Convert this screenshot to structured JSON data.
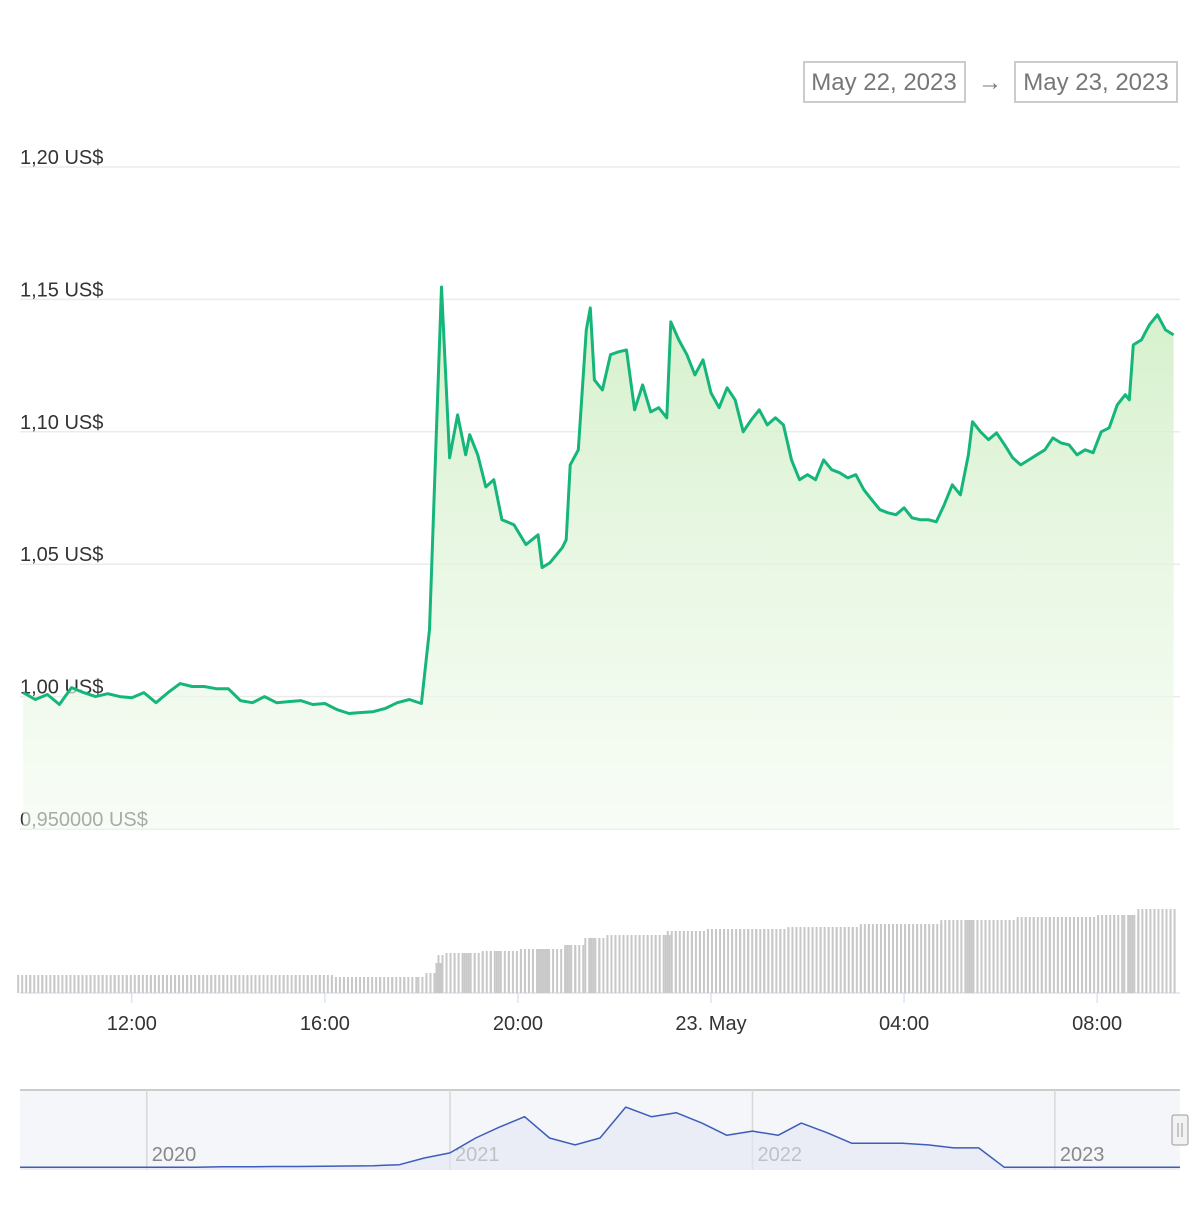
{
  "range_selector": {
    "from": "May 22, 2023",
    "separator": "→",
    "to": "May 23, 2023"
  },
  "chart_data": [
    {
      "type": "line",
      "color": "#16b67a",
      "grid": true,
      "x": [
        "2023-05-22T09:45",
        "2023-05-22T10:00",
        "2023-05-22T10:15",
        "2023-05-22T10:30",
        "2023-05-22T10:45",
        "2023-05-22T11:00",
        "2023-05-22T11:15",
        "2023-05-22T11:30",
        "2023-05-22T11:45",
        "2023-05-22T12:00",
        "2023-05-22T12:15",
        "2023-05-22T12:30",
        "2023-05-22T12:45",
        "2023-05-22T13:00",
        "2023-05-22T13:15",
        "2023-05-22T13:30",
        "2023-05-22T13:45",
        "2023-05-22T14:00",
        "2023-05-22T14:15",
        "2023-05-22T14:30",
        "2023-05-22T14:45",
        "2023-05-22T15:00",
        "2023-05-22T15:15",
        "2023-05-22T15:30",
        "2023-05-22T15:45",
        "2023-05-22T16:00",
        "2023-05-22T16:15",
        "2023-05-22T16:30",
        "2023-05-22T16:45",
        "2023-05-22T17:00",
        "2023-05-22T17:15",
        "2023-05-22T17:30",
        "2023-05-22T17:45",
        "2023-05-22T18:00",
        "2023-05-22T18:10",
        "2023-05-22T18:20",
        "2023-05-22T18:25",
        "2023-05-22T18:35",
        "2023-05-22T18:45",
        "2023-05-22T18:55",
        "2023-05-22T19:00",
        "2023-05-22T19:10",
        "2023-05-22T19:20",
        "2023-05-22T19:30",
        "2023-05-22T19:40",
        "2023-05-22T19:55",
        "2023-05-22T20:10",
        "2023-05-22T20:25",
        "2023-05-22T20:30",
        "2023-05-22T20:40",
        "2023-05-22T20:55",
        "2023-05-22T21:00",
        "2023-05-22T21:05",
        "2023-05-22T21:15",
        "2023-05-22T21:25",
        "2023-05-22T21:30",
        "2023-05-22T21:35",
        "2023-05-22T21:45",
        "2023-05-22T21:55",
        "2023-05-22T22:05",
        "2023-05-22T22:15",
        "2023-05-22T22:25",
        "2023-05-22T22:35",
        "2023-05-22T22:45",
        "2023-05-22T22:55",
        "2023-05-22T23:05",
        "2023-05-22T23:10",
        "2023-05-22T23:20",
        "2023-05-22T23:30",
        "2023-05-22T23:40",
        "2023-05-22T23:50",
        "2023-05-23T00:00",
        "2023-05-23T00:10",
        "2023-05-23T00:20",
        "2023-05-23T00:30",
        "2023-05-23T00:40",
        "2023-05-23T00:50",
        "2023-05-23T01:00",
        "2023-05-23T01:10",
        "2023-05-23T01:20",
        "2023-05-23T01:30",
        "2023-05-23T01:40",
        "2023-05-23T01:50",
        "2023-05-23T02:00",
        "2023-05-23T02:10",
        "2023-05-23T02:20",
        "2023-05-23T02:30",
        "2023-05-23T02:40",
        "2023-05-23T02:50",
        "2023-05-23T03:00",
        "2023-05-23T03:10",
        "2023-05-23T03:20",
        "2023-05-23T03:30",
        "2023-05-23T03:40",
        "2023-05-23T03:50",
        "2023-05-23T04:00",
        "2023-05-23T04:10",
        "2023-05-23T04:20",
        "2023-05-23T04:30",
        "2023-05-23T04:40",
        "2023-05-23T04:50",
        "2023-05-23T05:00",
        "2023-05-23T05:10",
        "2023-05-23T05:20",
        "2023-05-23T05:25",
        "2023-05-23T05:35",
        "2023-05-23T05:45",
        "2023-05-23T05:55",
        "2023-05-23T06:05",
        "2023-05-23T06:15",
        "2023-05-23T06:25",
        "2023-05-23T06:35",
        "2023-05-23T06:45",
        "2023-05-23T06:55",
        "2023-05-23T07:05",
        "2023-05-23T07:15",
        "2023-05-23T07:25",
        "2023-05-23T07:35",
        "2023-05-23T07:45",
        "2023-05-23T07:55",
        "2023-05-23T08:05",
        "2023-05-23T08:15",
        "2023-05-23T08:25",
        "2023-05-23T08:35",
        "2023-05-23T08:40",
        "2023-05-23T08:45",
        "2023-05-23T08:55",
        "2023-05-23T09:05",
        "2023-05-23T09:15",
        "2023-05-23T09:25",
        "2023-05-23T09:35"
      ],
      "values": [
        1.0015,
        0.9989,
        1.0008,
        0.997,
        1.0034,
        1.0015,
        1.0,
        1.0011,
        1.0,
        0.9996,
        1.0015,
        0.9977,
        1.0015,
        1.0049,
        1.0038,
        1.0038,
        1.003,
        1.003,
        0.9985,
        0.9977,
        1.0,
        0.9977,
        0.9981,
        0.9985,
        0.997,
        0.9974,
        0.9951,
        0.9936,
        0.994,
        0.9943,
        0.9955,
        0.9977,
        0.9989,
        0.9974,
        1.0253,
        1.1121,
        1.1547,
        1.0902,
        1.1064,
        1.0913,
        1.0989,
        1.0913,
        1.0792,
        1.0819,
        1.0668,
        1.0649,
        1.0574,
        1.0611,
        1.0487,
        1.0506,
        1.0562,
        1.0592,
        1.0875,
        1.0932,
        1.1385,
        1.1468,
        1.1196,
        1.1158,
        1.1291,
        1.1302,
        1.1309,
        1.1083,
        1.1177,
        1.1075,
        1.1091,
        1.1053,
        1.1415,
        1.1347,
        1.1291,
        1.1215,
        1.1272,
        1.1147,
        1.1091,
        1.1166,
        1.1121,
        1.1,
        1.1045,
        1.1083,
        1.1026,
        1.1053,
        1.1026,
        1.0894,
        1.0819,
        1.0838,
        1.0819,
        1.0894,
        1.0857,
        1.0845,
        1.0826,
        1.0838,
        1.0781,
        1.0743,
        1.0706,
        1.0694,
        1.0687,
        1.0713,
        1.0675,
        1.0668,
        1.0668,
        1.066,
        1.0725,
        1.08,
        1.0762,
        1.0913,
        1.1038,
        1.1,
        1.097,
        1.0996,
        1.0951,
        1.0902,
        1.0875,
        1.0894,
        1.0913,
        1.0932,
        1.0977,
        1.0958,
        1.0951,
        1.0913,
        1.0932,
        1.0921,
        1.1,
        1.1015,
        1.1102,
        1.114,
        1.1121,
        1.1328,
        1.1347,
        1.1404,
        1.1442,
        1.1385,
        1.1366
      ],
      "volume": [
        18,
        18,
        18,
        18,
        18,
        18,
        18,
        18,
        18,
        18,
        18,
        18,
        18,
        18,
        18,
        18,
        18,
        18,
        18,
        18,
        18,
        18,
        18,
        18,
        18,
        18,
        16,
        16,
        16,
        16,
        16,
        16,
        16,
        16,
        20,
        30,
        38,
        40,
        40,
        40,
        40,
        40,
        42,
        42,
        42,
        42,
        44,
        44,
        44,
        44,
        44,
        48,
        48,
        48,
        55,
        55,
        55,
        55,
        58,
        58,
        58,
        58,
        58,
        58,
        58,
        58,
        62,
        62,
        62,
        62,
        62,
        64,
        64,
        64,
        64,
        64,
        64,
        64,
        64,
        64,
        64,
        66,
        66,
        66,
        66,
        66,
        66,
        66,
        66,
        66,
        69,
        69,
        69,
        69,
        69,
        69,
        69,
        69,
        69,
        69,
        73,
        73,
        73,
        73,
        73,
        73,
        73,
        73,
        73,
        73,
        76,
        76,
        76,
        76,
        76,
        76,
        76,
        76,
        76,
        76,
        78,
        78,
        78,
        78,
        78,
        78,
        84,
        84,
        84,
        84,
        84
      ],
      "volume_color": "#c8c8c8",
      "volume_ylim": [
        0,
        100
      ],
      "xlim": [
        "2023-05-22T09:41",
        "2023-05-23T09:43"
      ],
      "xticks": [
        {
          "value": "2023-05-22T12:00",
          "label": "12:00"
        },
        {
          "value": "2023-05-22T16:00",
          "label": "16:00"
        },
        {
          "value": "2023-05-22T20:00",
          "label": "20:00"
        },
        {
          "value": "2023-05-23T00:00",
          "label": "23. May"
        },
        {
          "value": "2023-05-23T04:00",
          "label": "04:00"
        },
        {
          "value": "2023-05-23T08:00",
          "label": "08:00"
        }
      ],
      "ylim": [
        0.95,
        1.2
      ],
      "yticks": [
        {
          "value": 0.95,
          "label": "0,950000 US$"
        },
        {
          "value": 1.0,
          "label": "1,00 US$"
        },
        {
          "value": 1.05,
          "label": "1,05 US$"
        },
        {
          "value": 1.1,
          "label": "1,10 US$"
        },
        {
          "value": 1.15,
          "label": "1,15 US$"
        },
        {
          "value": 1.2,
          "label": "1,20 US$"
        }
      ]
    },
    {
      "type": "line",
      "color": "#3d5db8",
      "grid": true,
      "x": [
        "2019-08",
        "2019-09",
        "2019-10",
        "2019-11",
        "2019-12",
        "2020-01",
        "2020-02",
        "2020-03",
        "2020-04",
        "2020-05",
        "2020-06",
        "2020-07",
        "2020-08",
        "2020-09",
        "2020-10",
        "2020-11",
        "2020-12",
        "2021-01",
        "2021-02",
        "2021-03",
        "2021-04",
        "2021-05",
        "2021-06",
        "2021-07",
        "2021-08",
        "2021-09",
        "2021-10",
        "2021-11",
        "2021-12",
        "2022-01",
        "2022-02",
        "2022-03",
        "2022-04",
        "2022-05",
        "2022-06",
        "2022-07",
        "2022-08",
        "2022-09",
        "2022-10",
        "2022-11",
        "2022-12",
        "2023-01",
        "2023-02",
        "2023-03",
        "2023-04",
        "2023-05",
        "2023-06"
      ],
      "values": [
        1,
        1,
        1,
        1,
        1,
        1,
        1,
        1,
        1.2,
        1.2,
        1.3,
        1.3,
        1.4,
        1.5,
        1.6,
        2,
        4.5,
        6.4,
        12,
        16,
        20,
        12,
        9.4,
        12,
        23.6,
        20,
        21.5,
        17.6,
        13,
        14.6,
        13,
        17.6,
        14,
        10,
        10,
        10,
        9.4,
        8.3,
        8.3,
        1,
        1,
        1,
        1,
        1,
        1,
        1,
        1
      ],
      "xlim": [
        "2019-08",
        "2023-06"
      ],
      "xticks": [
        {
          "value": "2020-01",
          "label": "2020"
        },
        {
          "value": "2021-01",
          "label": "2021"
        },
        {
          "value": "2022-01",
          "label": "2022"
        },
        {
          "value": "2023-01",
          "label": "2023"
        }
      ],
      "ylim": [
        0,
        30
      ]
    }
  ]
}
